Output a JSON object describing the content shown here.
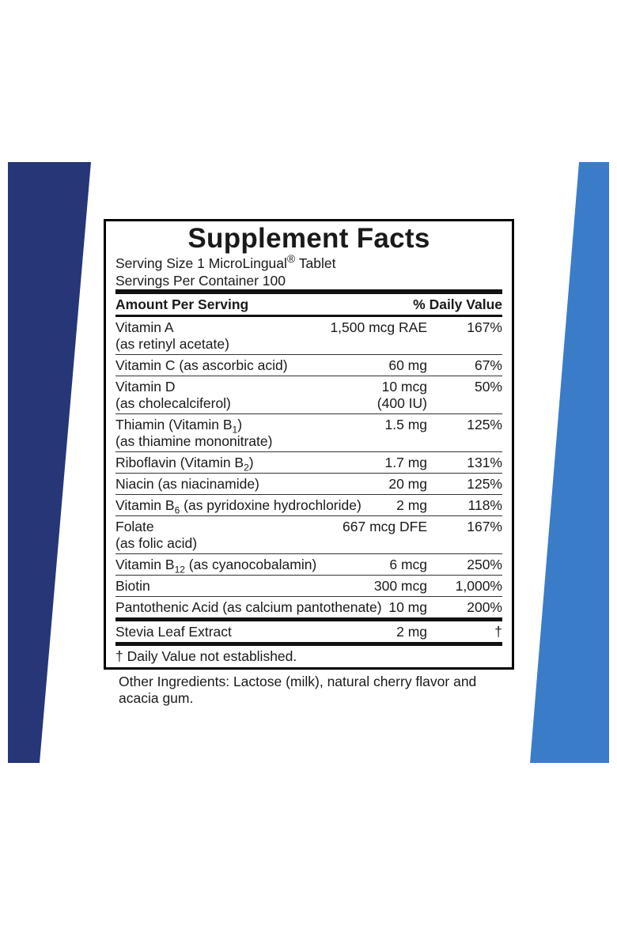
{
  "title": "Supplement Facts",
  "serving_size": {
    "text": "Serving Size 1 MicroLingual",
    "mark": "®",
    "after": " Tablet"
  },
  "servings_per_container": "Servings Per Container 100",
  "header": {
    "amount": "Amount Per Serving",
    "dv": "% Daily Value"
  },
  "rows": [
    {
      "name": "Vitamin A",
      "note": "(as retinyl acetate)",
      "amount": "1,500 mcg RAE",
      "dv": "167%"
    },
    {
      "name": "Vitamin C (as ascorbic acid)",
      "amount": "60 mg",
      "dv": "67%"
    },
    {
      "name": "Vitamin D",
      "note": "(as cholecalciferol)",
      "amount": "10 mcg",
      "amount_note": "(400 IU)",
      "dv": "50%"
    },
    {
      "name": "Thiamin (Vitamin B",
      "sub": "1",
      "name_after": ")",
      "note": "(as thiamine mononitrate)",
      "amount": "1.5 mg",
      "dv": "125%"
    },
    {
      "name": "Riboflavin (Vitamin B",
      "sub": "2",
      "name_after": ")",
      "amount": "1.7 mg",
      "dv": "131%"
    },
    {
      "name": "Niacin (as niacinamide)",
      "amount": "20 mg",
      "dv": "125%"
    },
    {
      "name": "Vitamin B",
      "sub": "6",
      "name_after": " (as pyridoxine hydrochloride)",
      "amount": "2 mg",
      "dv": "118%"
    },
    {
      "name": "Folate",
      "note": "(as folic acid)",
      "amount": "667 mcg DFE",
      "dv": "167%"
    },
    {
      "name": "Vitamin B",
      "sub": "12",
      "name_after": " (as cyanocobalamin)",
      "amount": "6 mcg",
      "dv": "250%"
    },
    {
      "name": "Biotin",
      "amount": "300 mcg",
      "dv": "1,000%"
    },
    {
      "name": "Pantothenic Acid (as calcium pantothenate)",
      "amount": "10 mg",
      "dv": "200%"
    },
    {
      "name": "Stevia Leaf Extract",
      "amount": "2 mg",
      "dv": "†"
    }
  ],
  "footnote": "†  Daily Value not established.",
  "other_ingredients": "Other Ingredients: Lactose (milk), natural cherry flavor and acacia gum."
}
